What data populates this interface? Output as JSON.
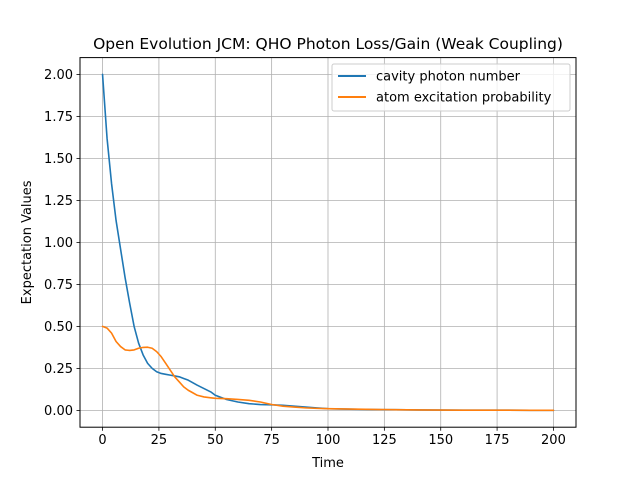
{
  "chart_data": {
    "type": "line",
    "title": "Open Evolution JCM: QHO Photon Loss/Gain (Weak Coupling)",
    "xlabel": "Time",
    "ylabel": "Expectation Values",
    "xlim": [
      -10,
      210
    ],
    "ylim": [
      -0.1,
      2.1
    ],
    "xticks": [
      0,
      25,
      50,
      75,
      100,
      125,
      150,
      175,
      200
    ],
    "yticks": [
      0.0,
      0.25,
      0.5,
      0.75,
      1.0,
      1.25,
      1.5,
      1.75,
      2.0
    ],
    "xtick_labels": [
      "0",
      "25",
      "50",
      "75",
      "100",
      "125",
      "150",
      "175",
      "200"
    ],
    "ytick_labels": [
      "0.00",
      "0.25",
      "0.50",
      "0.75",
      "1.00",
      "1.25",
      "1.50",
      "1.75",
      "2.00"
    ],
    "grid": true,
    "legend_position": "top-right",
    "series": [
      {
        "name": "cavity photon number",
        "color": "#1f77b4",
        "x": [
          0,
          2,
          4,
          6,
          8,
          10,
          12,
          14,
          16,
          18,
          20,
          22,
          24,
          26,
          28,
          30,
          32,
          34,
          36,
          38,
          40,
          42,
          45,
          48,
          50,
          55,
          60,
          65,
          70,
          75,
          80,
          85,
          90,
          95,
          100,
          110,
          120,
          130,
          140,
          150,
          160,
          170,
          180,
          190,
          200
        ],
        "y": [
          2.0,
          1.62,
          1.35,
          1.13,
          0.96,
          0.79,
          0.64,
          0.5,
          0.4,
          0.33,
          0.28,
          0.25,
          0.23,
          0.22,
          0.215,
          0.21,
          0.205,
          0.2,
          0.19,
          0.18,
          0.165,
          0.15,
          0.13,
          0.11,
          0.09,
          0.065,
          0.05,
          0.04,
          0.035,
          0.033,
          0.03,
          0.025,
          0.02,
          0.015,
          0.01,
          0.007,
          0.005,
          0.004,
          0.003,
          0.002,
          0.0015,
          0.001,
          0.001,
          0.0005,
          0.0005
        ]
      },
      {
        "name": "atom excitation probability",
        "color": "#ff7f0e",
        "x": [
          0,
          2,
          4,
          6,
          8,
          10,
          12,
          14,
          16,
          18,
          20,
          22,
          24,
          26,
          28,
          30,
          32,
          34,
          36,
          38,
          40,
          42,
          45,
          48,
          50,
          55,
          60,
          65,
          70,
          75,
          80,
          85,
          90,
          95,
          100,
          110,
          120,
          130,
          140,
          150,
          160,
          170,
          180,
          190,
          200
        ],
        "y": [
          0.5,
          0.49,
          0.46,
          0.41,
          0.38,
          0.36,
          0.357,
          0.36,
          0.37,
          0.375,
          0.376,
          0.37,
          0.35,
          0.32,
          0.28,
          0.24,
          0.2,
          0.17,
          0.14,
          0.12,
          0.105,
          0.09,
          0.08,
          0.075,
          0.072,
          0.07,
          0.065,
          0.06,
          0.05,
          0.035,
          0.025,
          0.02,
          0.015,
          0.012,
          0.01,
          0.008,
          0.006,
          0.004,
          0.003,
          0.002,
          0.0015,
          0.001,
          0.001,
          0.0005,
          0.0005
        ]
      }
    ]
  }
}
